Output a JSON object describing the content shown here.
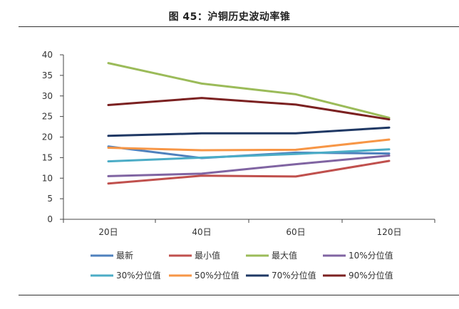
{
  "title": "图 45：沪铜历史波动率锥",
  "chart_data": {
    "type": "line",
    "categories": [
      "20日",
      "40日",
      "60日",
      "120日"
    ],
    "ylim": [
      0,
      40
    ],
    "yticks": [
      0,
      5,
      10,
      15,
      20,
      25,
      30,
      35,
      40
    ],
    "grid": false,
    "legend_position": "bottom",
    "series": [
      {
        "name": "最新",
        "color": "#4f81bd",
        "values": [
          17.7,
          14.9,
          16.2,
          16.0
        ]
      },
      {
        "name": "最小值",
        "color": "#c0504d",
        "values": [
          8.7,
          10.6,
          10.4,
          14.2
        ]
      },
      {
        "name": "最大值",
        "color": "#9bbb59",
        "values": [
          38.0,
          33.0,
          30.4,
          24.7
        ]
      },
      {
        "name": "10%分位值",
        "color": "#8064a2",
        "values": [
          10.5,
          11.1,
          13.4,
          15.5
        ]
      },
      {
        "name": "30%分位值",
        "color": "#4bacc6",
        "values": [
          14.1,
          15.0,
          15.9,
          17.0
        ]
      },
      {
        "name": "50%分位值",
        "color": "#f79646",
        "values": [
          17.4,
          16.8,
          16.9,
          19.4
        ]
      },
      {
        "name": "70%分位值",
        "color": "#1f3864",
        "values": [
          20.3,
          20.9,
          20.9,
          22.3
        ]
      },
      {
        "name": "90%分位值",
        "color": "#7b2121",
        "values": [
          27.8,
          29.5,
          27.9,
          24.3
        ]
      }
    ]
  }
}
